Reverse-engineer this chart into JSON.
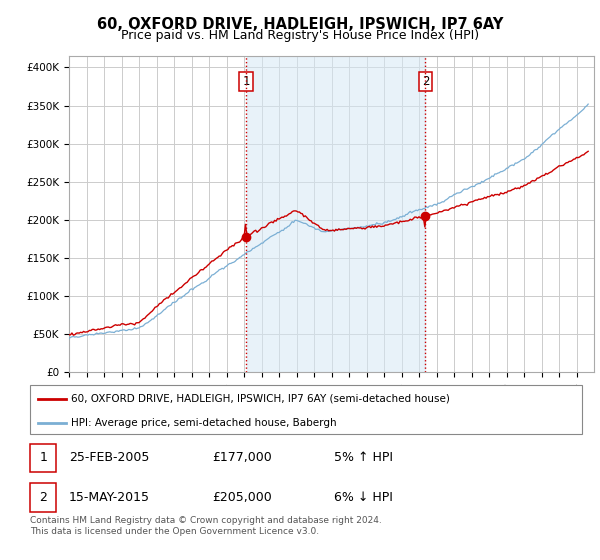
{
  "title": "60, OXFORD DRIVE, HADLEIGH, IPSWICH, IP7 6AY",
  "subtitle": "Price paid vs. HM Land Registry's House Price Index (HPI)",
  "ylabel_ticks": [
    "£0",
    "£50K",
    "£100K",
    "£150K",
    "£200K",
    "£250K",
    "£300K",
    "£350K",
    "£400K"
  ],
  "ytick_vals": [
    0,
    50000,
    100000,
    150000,
    200000,
    250000,
    300000,
    350000,
    400000
  ],
  "ylim": [
    0,
    415000
  ],
  "xlim_start": 1995.0,
  "xlim_end": 2025.0,
  "line1_color": "#cc0000",
  "line2_color": "#7bafd4",
  "fill_color": "#d6e8f5",
  "vline_color": "#cc0000",
  "marker_color": "#cc0000",
  "sale1_x": 2005.12,
  "sale1_y": 177000,
  "sale2_x": 2015.37,
  "sale2_y": 205000,
  "legend_line1": "60, OXFORD DRIVE, HADLEIGH, IPSWICH, IP7 6AY (semi-detached house)",
  "legend_line2": "HPI: Average price, semi-detached house, Babergh",
  "table_row1_date": "25-FEB-2005",
  "table_row1_price": "£177,000",
  "table_row1_hpi": "5% ↑ HPI",
  "table_row2_date": "15-MAY-2015",
  "table_row2_price": "£205,000",
  "table_row2_hpi": "6% ↓ HPI",
  "footnote": "Contains HM Land Registry data © Crown copyright and database right 2024.\nThis data is licensed under the Open Government Licence v3.0.",
  "background_color": "#ffffff",
  "grid_color": "#cccccc",
  "title_fontsize": 10.5,
  "subtitle_fontsize": 9
}
